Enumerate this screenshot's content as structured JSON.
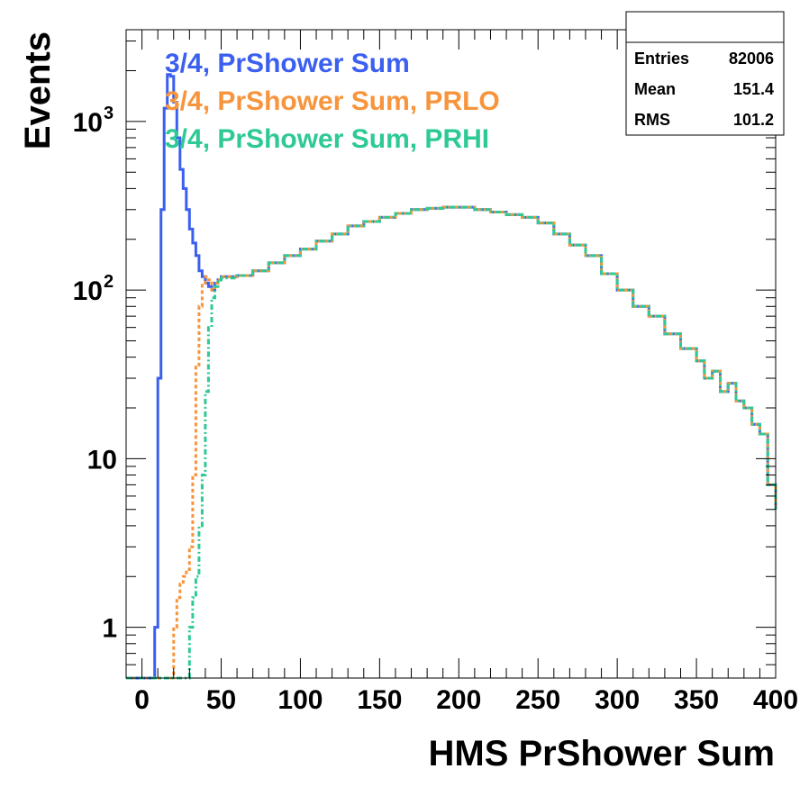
{
  "chart_data": {
    "type": "histogram",
    "xlabel": "HMS PrShower Sum",
    "ylabel": "Events",
    "xlim": [
      -10,
      400
    ],
    "ylim": [
      0.5,
      3500
    ],
    "y_scale": "log",
    "grid": false,
    "legend_position": "top-left",
    "x_ticks": [
      "0",
      "50",
      "100",
      "150",
      "200",
      "250",
      "300",
      "350",
      "400"
    ],
    "x_tick_values": [
      0,
      50,
      100,
      150,
      200,
      250,
      300,
      350,
      400
    ],
    "y_ticks": [
      "1",
      "10",
      "10",
      "10"
    ],
    "y_tick_values": [
      1,
      10,
      100,
      1000
    ],
    "y_tick_exponents": [
      "",
      "",
      "2",
      "3"
    ],
    "series": [
      {
        "name": "3/4, PrShower Sum",
        "color": "#3b5ff0",
        "x": [
          -10,
          8,
          10,
          12,
          14,
          16,
          18,
          20,
          22,
          24,
          26,
          28,
          30,
          32,
          34,
          36,
          38,
          40,
          42,
          44,
          46,
          48,
          50,
          60,
          70,
          80,
          90,
          100,
          110,
          120,
          130,
          140,
          150,
          160,
          170,
          180,
          190,
          200,
          210,
          220,
          230,
          240,
          250,
          260,
          270,
          280,
          290,
          300,
          310,
          320,
          330,
          340,
          350,
          355,
          360,
          365,
          370,
          375,
          380,
          385,
          390,
          395,
          400
        ],
        "y": [
          0.5,
          1,
          30,
          300,
          1200,
          1900,
          1850,
          1300,
          800,
          520,
          400,
          300,
          230,
          190,
          160,
          130,
          120,
          110,
          105,
          100,
          110,
          115,
          120,
          122,
          130,
          145,
          160,
          175,
          195,
          215,
          240,
          255,
          270,
          285,
          300,
          305,
          310,
          310,
          300,
          290,
          280,
          270,
          250,
          215,
          185,
          160,
          125,
          100,
          80,
          70,
          55,
          45,
          38,
          30,
          33,
          25,
          28,
          22,
          20,
          16,
          14,
          7,
          5
        ]
      },
      {
        "name": "3/4, PrShower Sum, PRLO",
        "color": "#f7943c",
        "x": [
          -10,
          20,
          22,
          24,
          26,
          28,
          30,
          32,
          34,
          36,
          38,
          40,
          42,
          44,
          46,
          48,
          50,
          60,
          70,
          80,
          90,
          100,
          110,
          120,
          130,
          140,
          150,
          160,
          170,
          180,
          190,
          200,
          210,
          220,
          230,
          240,
          250,
          260,
          270,
          280,
          290,
          300,
          310,
          320,
          330,
          340,
          350,
          355,
          360,
          365,
          370,
          375,
          380,
          385,
          390,
          395,
          400
        ],
        "y": [
          0.5,
          1,
          1.5,
          1.8,
          2,
          2.2,
          3,
          8,
          35,
          80,
          110,
          120,
          115,
          100,
          110,
          115,
          120,
          122,
          130,
          145,
          160,
          175,
          195,
          215,
          240,
          255,
          270,
          285,
          300,
          305,
          310,
          310,
          300,
          290,
          280,
          270,
          250,
          215,
          185,
          160,
          125,
          100,
          80,
          70,
          55,
          45,
          38,
          30,
          33,
          25,
          28,
          22,
          20,
          16,
          14,
          7,
          5
        ]
      },
      {
        "name": "3/4, PrShower Sum, PRHI",
        "color": "#2ec996",
        "x": [
          -10,
          30,
          32,
          34,
          36,
          38,
          40,
          42,
          44,
          46,
          48,
          50,
          60,
          70,
          80,
          90,
          100,
          110,
          120,
          130,
          140,
          150,
          160,
          170,
          180,
          190,
          200,
          210,
          220,
          230,
          240,
          250,
          260,
          270,
          280,
          290,
          300,
          310,
          320,
          330,
          340,
          350,
          355,
          360,
          365,
          370,
          375,
          380,
          385,
          390,
          395,
          400
        ],
        "y": [
          0.5,
          1,
          1.5,
          2,
          4,
          8,
          25,
          60,
          90,
          105,
          112,
          118,
          122,
          130,
          145,
          160,
          175,
          195,
          215,
          240,
          255,
          270,
          285,
          300,
          305,
          310,
          310,
          300,
          290,
          280,
          270,
          250,
          215,
          185,
          160,
          125,
          100,
          80,
          70,
          55,
          45,
          38,
          30,
          33,
          25,
          28,
          22,
          20,
          16,
          14,
          7,
          5
        ]
      }
    ],
    "stats": {
      "rows": [
        {
          "label": "Entries",
          "value": "82006"
        },
        {
          "label": "Mean",
          "value": "151.4"
        },
        {
          "label": "RMS",
          "value": "101.2"
        }
      ]
    }
  }
}
